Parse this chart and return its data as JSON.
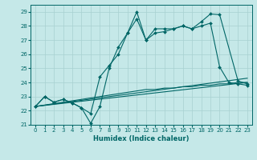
{
  "xlabel": "Humidex (Indice chaleur)",
  "xlim": [
    -0.5,
    23.5
  ],
  "ylim": [
    21,
    29.5
  ],
  "yticks": [
    21,
    22,
    23,
    24,
    25,
    26,
    27,
    28,
    29
  ],
  "xticks": [
    0,
    1,
    2,
    3,
    4,
    5,
    6,
    7,
    8,
    9,
    10,
    11,
    12,
    13,
    14,
    15,
    16,
    17,
    18,
    19,
    20,
    21,
    22,
    23
  ],
  "bg_color": "#c5e8e8",
  "grid_color": "#a8d0d0",
  "line_color": "#006666",
  "series1_x": [
    0,
    1,
    2,
    3,
    4,
    5,
    6,
    7,
    8,
    9,
    10,
    11,
    12,
    13,
    14,
    15,
    16,
    17,
    18,
    19,
    20,
    21,
    22,
    23
  ],
  "series1_y": [
    22.3,
    23.0,
    22.6,
    22.8,
    22.55,
    22.2,
    21.1,
    22.3,
    25.0,
    26.5,
    27.5,
    29.0,
    27.0,
    27.8,
    27.8,
    27.8,
    28.0,
    27.8,
    28.0,
    28.2,
    25.1,
    24.0,
    23.9,
    23.8
  ],
  "series2_x": [
    0,
    1,
    2,
    3,
    4,
    5,
    6,
    7,
    8,
    9,
    10,
    11,
    12,
    13,
    14,
    15,
    16,
    17,
    18,
    19,
    20,
    22,
    23
  ],
  "series2_y": [
    22.3,
    23.0,
    22.6,
    22.8,
    22.55,
    22.2,
    21.8,
    24.4,
    25.2,
    26.0,
    27.5,
    28.5,
    27.0,
    27.5,
    27.6,
    27.8,
    28.0,
    27.8,
    28.3,
    28.85,
    28.8,
    24.1,
    23.9
  ],
  "trend1_x": [
    0,
    23
  ],
  "trend1_y": [
    22.3,
    24.0
  ],
  "trend2_x": [
    0,
    23
  ],
  "trend2_y": [
    22.3,
    24.3
  ],
  "flat_x": [
    0,
    1,
    2,
    3,
    4,
    5,
    6,
    7,
    8,
    9,
    10,
    11,
    12,
    13,
    14,
    15,
    16,
    17,
    18,
    19,
    20,
    21,
    22,
    23
  ],
  "flat_y": [
    22.3,
    22.4,
    22.5,
    22.6,
    22.7,
    22.8,
    22.9,
    23.0,
    23.1,
    23.2,
    23.3,
    23.4,
    23.5,
    23.5,
    23.6,
    23.6,
    23.7,
    23.7,
    23.8,
    23.8,
    23.9,
    23.9,
    24.0,
    24.0
  ]
}
